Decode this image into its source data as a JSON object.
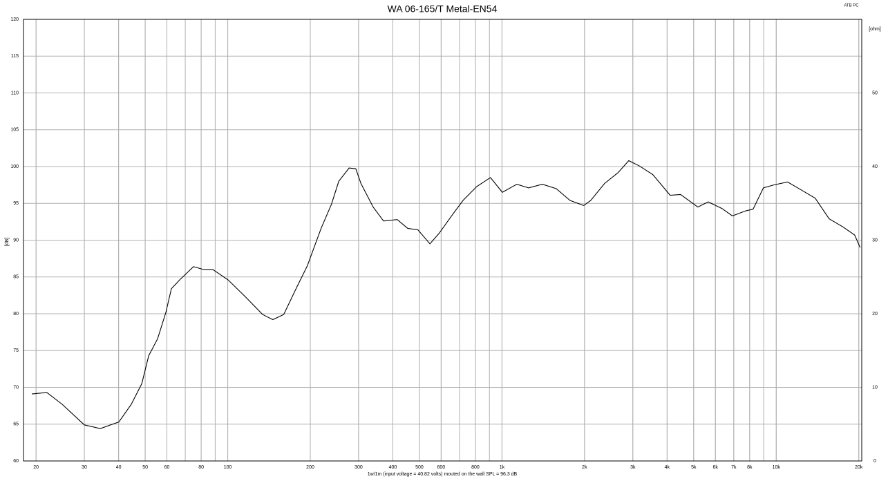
{
  "chart_data": {
    "type": "line",
    "title": "WA 06-165/T Metal-EN54",
    "corner_label": "ATB PC",
    "ylabel": "[dB]",
    "y2label": "[ohm]",
    "annotation": "1w/1m (input voltage = 40.82 volts) mouted on the wall  SPL = 96.3 dB",
    "xscale": "log",
    "grid": true,
    "xlim": [
      18,
      20500
    ],
    "ylim": [
      60,
      120
    ],
    "y2lim": [
      0,
      60
    ],
    "xticks": [
      20,
      30,
      40,
      50,
      60,
      80,
      100,
      200,
      300,
      400,
      500,
      600,
      800,
      {
        "value": 1000,
        "label": "1k"
      },
      {
        "value": 2000,
        "label": "2k"
      },
      {
        "value": 3000,
        "label": "3k"
      },
      {
        "value": 4000,
        "label": "4k"
      },
      {
        "value": 5000,
        "label": "5k"
      },
      {
        "value": 6000,
        "label": "6k"
      },
      {
        "value": 7000,
        "label": "7k"
      },
      {
        "value": 8000,
        "label": "8k"
      },
      {
        "value": 10000,
        "label": "10k"
      },
      {
        "value": 20000,
        "label": "20k"
      }
    ],
    "yticks": [
      60,
      65,
      70,
      75,
      80,
      85,
      90,
      95,
      100,
      105,
      110,
      115,
      120
    ],
    "y2ticks": [
      0,
      10,
      20,
      30,
      40,
      50
    ],
    "series": [
      {
        "color": "#000000",
        "x": [
          19.3,
          21.9,
          24.9,
          30,
          34.3,
          40.1,
          44.5,
          48.6,
          51.5,
          55.5,
          59.5,
          62.3,
          66.8,
          75,
          81.9,
          88.3,
          100.3,
          116,
          134,
          146,
          160,
          179,
          195,
          219,
          239,
          254,
          277,
          293,
          306,
          339,
          370,
          415,
          453,
          494,
          546,
          589,
          661,
          721,
          810,
          908,
          1003,
          1133,
          1250,
          1403,
          1577,
          1770,
          1987,
          2107,
          2366,
          2655,
          2899,
          3163,
          3549,
          4104,
          4479,
          5178,
          5651,
          6341,
          6919,
          7766,
          8232,
          8977,
          9795,
          11000,
          12360,
          13870,
          15590,
          17500,
          19310,
          20230
        ],
        "values": [
          69.1,
          69.3,
          67.7,
          64.9,
          64.4,
          65.3,
          67.7,
          70.5,
          74.3,
          76.6,
          80.2,
          83.4,
          84.6,
          86.4,
          86.0,
          86.0,
          84.6,
          82.3,
          79.9,
          79.2,
          79.9,
          83.7,
          86.5,
          91.6,
          94.9,
          98.0,
          99.8,
          99.7,
          97.7,
          94.5,
          92.6,
          92.8,
          91.6,
          91.4,
          89.5,
          90.9,
          93.5,
          95.4,
          97.3,
          98.5,
          96.5,
          97.6,
          97.1,
          97.6,
          97.0,
          95.4,
          94.7,
          95.4,
          97.7,
          99.2,
          100.8,
          100.1,
          98.9,
          96.1,
          96.2,
          94.5,
          95.2,
          94.3,
          93.3,
          94.0,
          94.2,
          97.1,
          97.5,
          97.9,
          96.8,
          95.7,
          92.9,
          91.8,
          90.7,
          89.0
        ]
      }
    ]
  }
}
